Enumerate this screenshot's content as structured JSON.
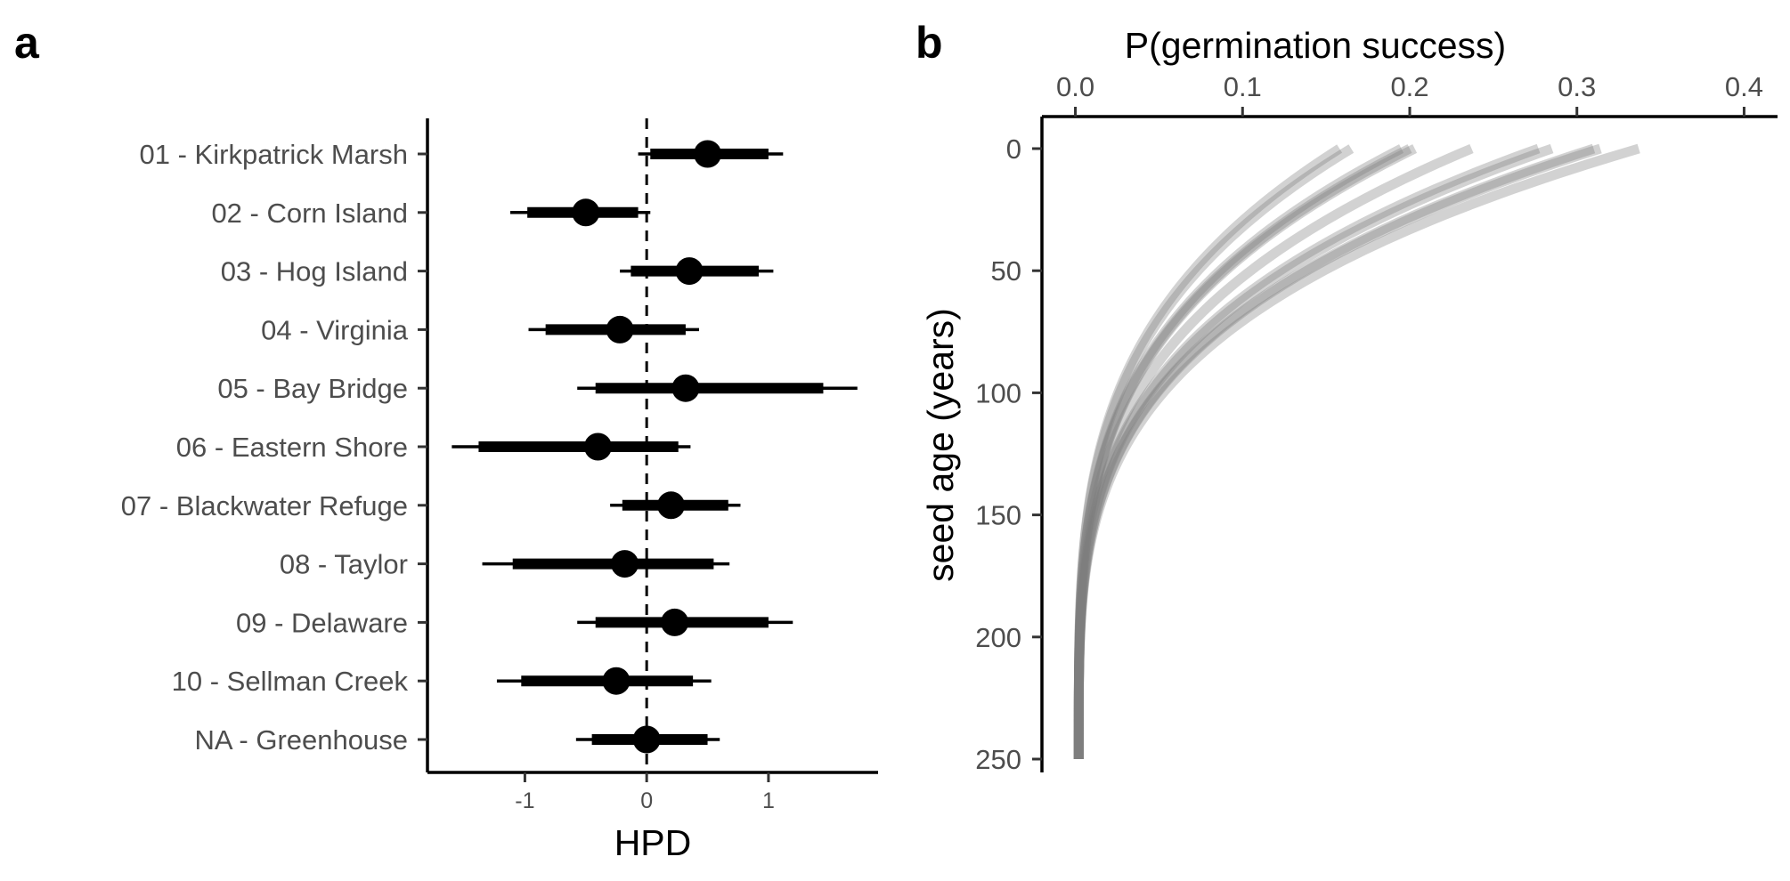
{
  "chart_data": [
    {
      "panel_label": "a",
      "type": "interval",
      "xlabel": "HPD",
      "ylabel": "",
      "xlim": [
        -1.8,
        1.9
      ],
      "xticks": [
        -1,
        0,
        1
      ],
      "reference_line_x": 0,
      "grid": false,
      "categories": [
        "01 - Kirkpatrick Marsh",
        "02 - Corn Island",
        "03 - Hog Island",
        "04 - Virginia",
        "05 - Bay Bridge",
        "06 - Eastern Shore",
        "07 - Blackwater Refuge",
        "08 - Taylor",
        "09 - Delaware",
        "10 - Sellman Creek",
        "NA - Greenhouse"
      ],
      "estimate": [
        0.5,
        -0.5,
        0.35,
        -0.22,
        0.32,
        -0.4,
        0.2,
        -0.18,
        0.23,
        -0.25,
        0.0
      ],
      "inner_low": [
        0.03,
        -0.98,
        -0.13,
        -0.83,
        -0.42,
        -1.38,
        -0.2,
        -1.1,
        -0.42,
        -1.03,
        -0.45
      ],
      "inner_high": [
        1.0,
        -0.07,
        0.92,
        0.32,
        1.45,
        0.26,
        0.67,
        0.55,
        1.0,
        0.38,
        0.5
      ],
      "outer_low": [
        -0.07,
        -1.12,
        -0.22,
        -0.97,
        -0.57,
        -1.6,
        -0.3,
        -1.35,
        -0.57,
        -1.23,
        -0.58
      ],
      "outer_high": [
        1.12,
        0.03,
        1.04,
        0.43,
        1.73,
        0.36,
        0.77,
        0.68,
        1.2,
        0.53,
        0.6
      ]
    },
    {
      "panel_label": "b",
      "type": "line",
      "xlabel": "P(germination success)",
      "ylabel": "seed age (years)",
      "xlim": [
        -0.02,
        0.42
      ],
      "xticks": [
        0.0,
        0.1,
        0.2,
        0.3,
        0.4
      ],
      "xtick_labels": [
        "0.0",
        "0.1",
        "0.2",
        "0.3",
        "0.4"
      ],
      "ylim": [
        0,
        250
      ],
      "yticks": [
        0,
        50,
        100,
        150,
        200,
        250
      ],
      "y_reversed": true,
      "x_axis_position": "top",
      "grid": false,
      "line_color": "#7f7f7f",
      "line_opacity": 0.35,
      "series_p0": [
        0.158,
        0.165,
        0.195,
        0.2,
        0.203,
        0.237,
        0.277,
        0.285,
        0.31,
        0.314,
        0.337
      ],
      "series_p_at_seed_age_250": 0.002
    }
  ]
}
